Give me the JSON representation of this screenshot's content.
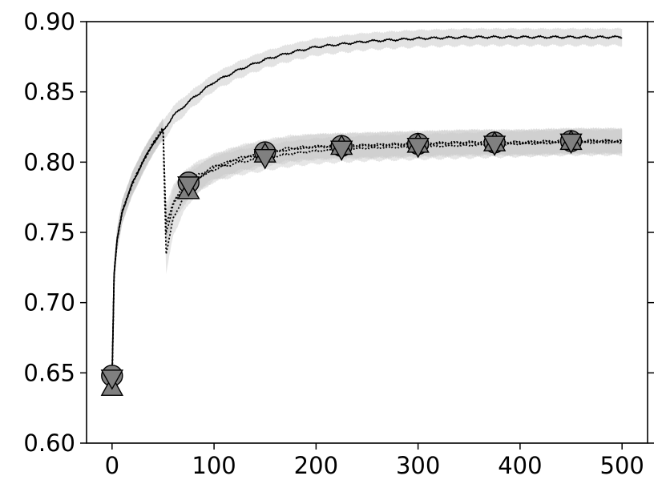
{
  "chart_data": {
    "type": "line",
    "title": "",
    "xlabel": "",
    "ylabel": "",
    "xlim": [
      -25,
      525
    ],
    "ylim": [
      0.6,
      0.9
    ],
    "x_ticks": [
      0,
      100,
      200,
      300,
      400,
      500
    ],
    "y_ticks": [
      0.6,
      0.65,
      0.7,
      0.75,
      0.8,
      0.85,
      0.9
    ],
    "x_tick_labels": [
      "0",
      "100",
      "200",
      "300",
      "400",
      "500"
    ],
    "y_tick_labels": [
      "0.60",
      "0.65",
      "0.70",
      "0.75",
      "0.80",
      "0.85",
      "0.90"
    ],
    "grid": false,
    "legend": "none",
    "series": [
      {
        "style": "solid",
        "band_color": "#d9d9d9",
        "x": [
          0,
          2,
          5,
          10,
          20,
          30,
          40,
          50,
          60,
          80,
          100,
          125,
          150,
          175,
          200,
          250,
          300,
          350,
          400,
          450,
          500
        ],
        "y": [
          0.645,
          0.72,
          0.745,
          0.765,
          0.785,
          0.8,
          0.813,
          0.822,
          0.833,
          0.846,
          0.857,
          0.866,
          0.873,
          0.878,
          0.882,
          0.886,
          0.888,
          0.889,
          0.889,
          0.889,
          0.889
        ],
        "band": [
          0.006,
          0.008,
          0.008,
          0.008,
          0.008,
          0.008,
          0.007,
          0.007,
          0.007,
          0.006,
          0.006,
          0.006,
          0.006,
          0.006,
          0.006,
          0.006,
          0.006,
          0.006,
          0.006,
          0.006,
          0.006
        ]
      },
      {
        "style": "dotted",
        "marker": "circle",
        "band_color": "#c8c8c8",
        "marker_x": [
          0,
          75,
          150,
          225,
          300,
          375,
          450
        ],
        "x": [
          0,
          2,
          5,
          10,
          20,
          30,
          40,
          50,
          53,
          56,
          60,
          70,
          80,
          100,
          125,
          150,
          175,
          200,
          250,
          300,
          350,
          400,
          450,
          500
        ],
        "y": [
          0.648,
          0.72,
          0.745,
          0.765,
          0.785,
          0.8,
          0.813,
          0.824,
          0.755,
          0.762,
          0.772,
          0.782,
          0.789,
          0.797,
          0.803,
          0.807,
          0.81,
          0.811,
          0.812,
          0.813,
          0.814,
          0.814,
          0.815,
          0.815
        ],
        "band": [
          0.006,
          0.008,
          0.008,
          0.008,
          0.008,
          0.008,
          0.007,
          0.007,
          0.015,
          0.013,
          0.012,
          0.011,
          0.01,
          0.009,
          0.009,
          0.009,
          0.009,
          0.009,
          0.009,
          0.009,
          0.009,
          0.009,
          0.009,
          0.009
        ]
      },
      {
        "style": "dotted",
        "marker": "triangle-up",
        "band_color": "#c8c8c8",
        "marker_x": [
          0,
          75,
          150,
          225,
          300,
          375,
          450
        ],
        "x": [
          0,
          2,
          5,
          10,
          20,
          30,
          40,
          50,
          53,
          56,
          60,
          70,
          80,
          100,
          125,
          150,
          175,
          200,
          250,
          300,
          350,
          400,
          450,
          500
        ],
        "y": [
          0.64,
          0.72,
          0.745,
          0.765,
          0.785,
          0.8,
          0.813,
          0.824,
          0.735,
          0.745,
          0.76,
          0.775,
          0.785,
          0.796,
          0.802,
          0.806,
          0.809,
          0.811,
          0.812,
          0.813,
          0.814,
          0.814,
          0.815,
          0.815
        ],
        "band": [
          0.006,
          0.008,
          0.008,
          0.008,
          0.008,
          0.008,
          0.007,
          0.007,
          0.015,
          0.013,
          0.012,
          0.011,
          0.01,
          0.009,
          0.009,
          0.009,
          0.009,
          0.009,
          0.009,
          0.009,
          0.009,
          0.009,
          0.009,
          0.009
        ]
      },
      {
        "style": "dotted",
        "marker": "triangle-down",
        "band_color": "#c8c8c8",
        "marker_x": [
          0,
          75,
          150,
          225,
          300,
          375,
          450
        ],
        "x": [
          0,
          2,
          5,
          10,
          20,
          30,
          40,
          50,
          53,
          56,
          60,
          70,
          80,
          100,
          125,
          150,
          175,
          200,
          250,
          300,
          350,
          400,
          450,
          500
        ],
        "y": [
          0.646,
          0.72,
          0.745,
          0.765,
          0.785,
          0.8,
          0.813,
          0.824,
          0.75,
          0.758,
          0.77,
          0.78,
          0.787,
          0.795,
          0.8,
          0.803,
          0.806,
          0.808,
          0.81,
          0.811,
          0.812,
          0.813,
          0.814,
          0.814
        ],
        "band": [
          0.006,
          0.008,
          0.008,
          0.008,
          0.008,
          0.008,
          0.007,
          0.007,
          0.015,
          0.013,
          0.012,
          0.011,
          0.01,
          0.009,
          0.009,
          0.009,
          0.009,
          0.009,
          0.009,
          0.009,
          0.009,
          0.009,
          0.009,
          0.009
        ]
      }
    ]
  }
}
